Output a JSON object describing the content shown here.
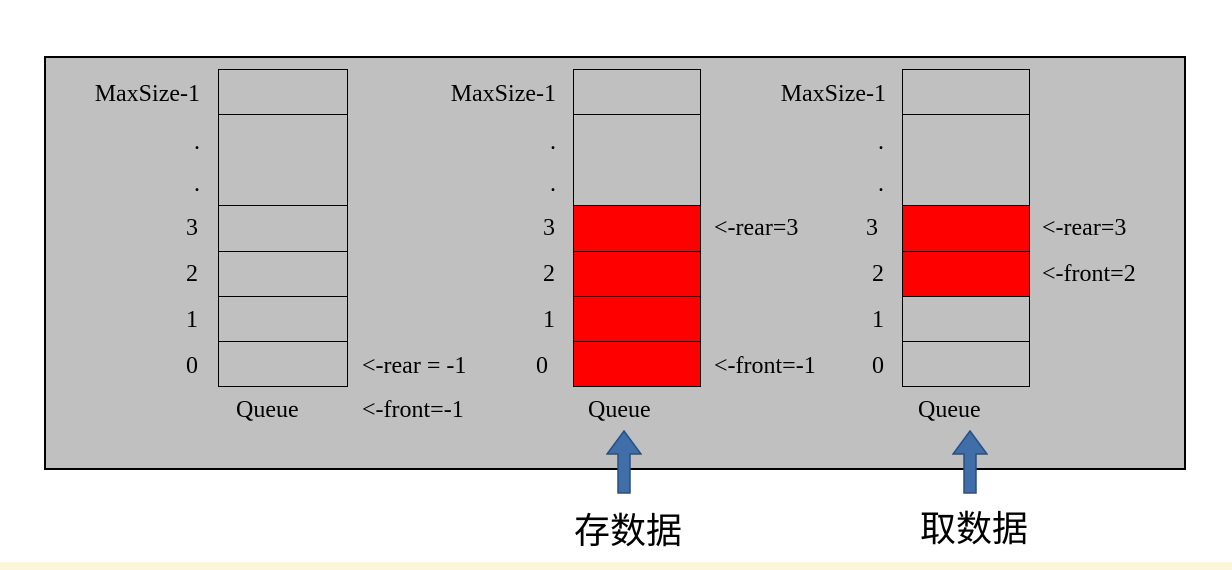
{
  "diagram": {
    "panels": [
      {
        "maxsize_label": "MaxSize-1",
        "dots": [
          ".",
          "."
        ],
        "indices": [
          "3",
          "2",
          "1",
          "0"
        ],
        "queue_label": "Queue",
        "cells_filled": [
          false,
          false,
          false,
          false,
          false,
          false
        ],
        "notes": {
          "rear": "<-rear = -1",
          "front": "<-front=-1"
        }
      },
      {
        "maxsize_label": "MaxSize-1",
        "dots": [
          ".",
          "."
        ],
        "indices": [
          "3",
          "2",
          "1",
          "0"
        ],
        "queue_label": "Queue",
        "cells_filled": [
          false,
          false,
          true,
          true,
          true,
          true
        ],
        "notes": {
          "rear": "<-rear=3",
          "front": "<-front=-1"
        },
        "caption": "存数据"
      },
      {
        "maxsize_label": "MaxSize-1",
        "dots": [
          ".",
          "."
        ],
        "indices": [
          "3",
          "2",
          "1",
          "0"
        ],
        "queue_label": "Queue",
        "cells_filled": [
          false,
          false,
          true,
          true,
          false,
          false
        ],
        "notes": {
          "rear": "<-rear=3",
          "front": "<-front=2"
        },
        "caption": "取数据"
      }
    ],
    "colors": {
      "panel_bg": "#c0c0c0",
      "filled": "#ff0000",
      "arrow": "#3f6ea8"
    }
  }
}
